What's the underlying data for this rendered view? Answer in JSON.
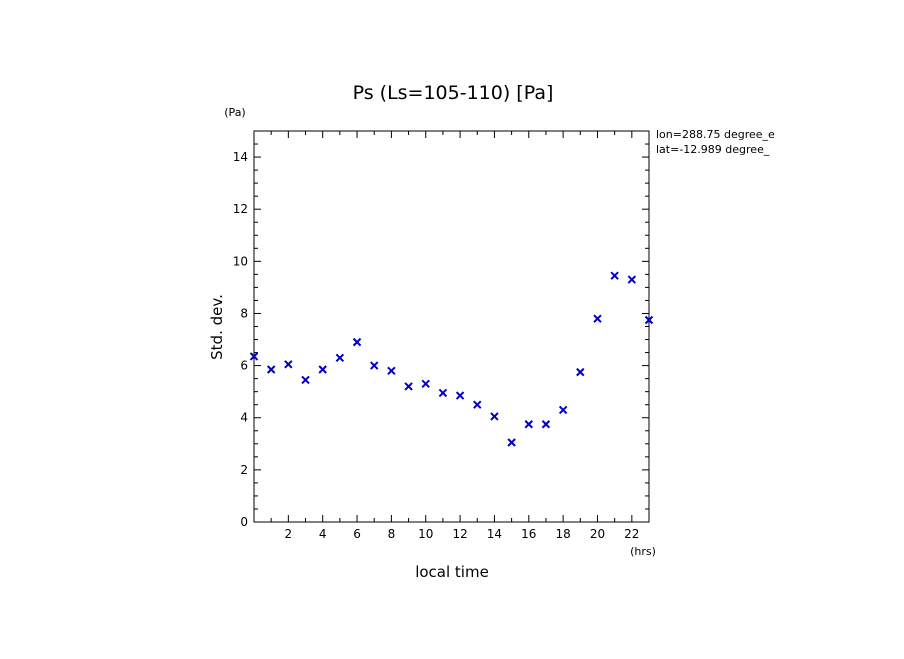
{
  "chart_data": {
    "type": "scatter",
    "title": "Ps (Ls=105-110) [Pa]",
    "xlabel": "local time",
    "ylabel": "Std. dev.",
    "x_unit": "(hrs)",
    "y_unit": "(Pa)",
    "xlim": [
      0,
      23
    ],
    "ylim": [
      0,
      15
    ],
    "xticks": [
      2,
      4,
      6,
      8,
      10,
      12,
      14,
      16,
      18,
      20,
      22
    ],
    "yticks": [
      0,
      2,
      4,
      6,
      8,
      10,
      12,
      14
    ],
    "marker": "x",
    "marker_color": "#0000cc",
    "grid": false,
    "annotations": [
      "lon=288.75 degree_e",
      "lat=-12.989 degree_"
    ],
    "series": [
      {
        "x": [
          0,
          1,
          2,
          3,
          4,
          5,
          6,
          7,
          8,
          9,
          10,
          11,
          12,
          13,
          14,
          15,
          16,
          17,
          18,
          19,
          20,
          21,
          22,
          23
        ],
        "y": [
          6.35,
          5.85,
          6.05,
          5.45,
          5.85,
          6.3,
          6.9,
          6.0,
          5.8,
          5.2,
          5.3,
          4.95,
          4.85,
          4.5,
          4.05,
          3.05,
          3.75,
          3.75,
          4.3,
          5.75,
          7.8,
          9.45,
          9.3,
          7.75
        ]
      }
    ]
  }
}
